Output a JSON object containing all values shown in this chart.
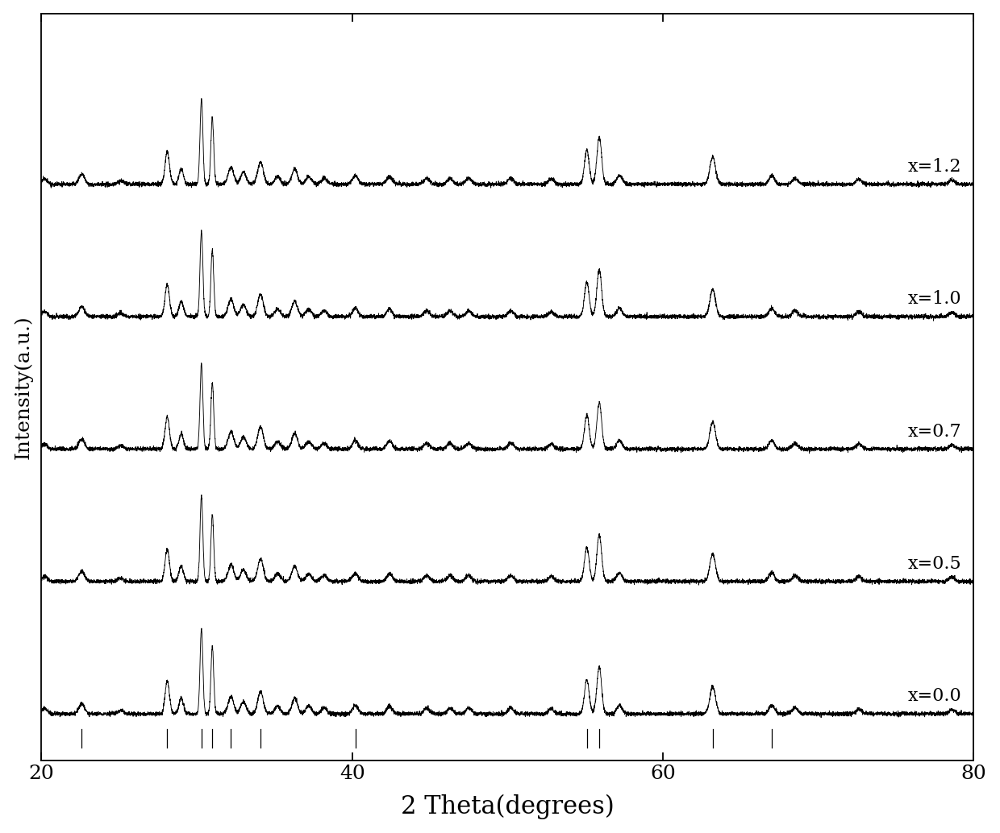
{
  "xlabel": "2 Theta(degrees)",
  "ylabel": "Intensity(a.u.)",
  "xlim": [
    20,
    80
  ],
  "x_ticks": [
    20,
    40,
    60,
    80
  ],
  "labels": [
    "x=0.0",
    "x=0.5",
    "x=0.7",
    "x=1.0",
    "x=1.2"
  ],
  "offsets": [
    0.0,
    1.55,
    3.1,
    4.65,
    6.2
  ],
  "line_color": "#000000",
  "background_color": "#ffffff",
  "noise_amplitude": 0.012,
  "xlabel_fontsize": 22,
  "ylabel_fontsize": 18,
  "tick_fontsize": 18,
  "label_fontsize": 16,
  "peak_positions": [
    20.2,
    22.6,
    25.1,
    28.1,
    29.0,
    30.3,
    31.0,
    32.2,
    33.0,
    34.1,
    35.2,
    36.3,
    37.2,
    38.2,
    40.2,
    42.4,
    44.8,
    46.3,
    47.5,
    50.2,
    52.8,
    55.1,
    55.9,
    57.2,
    63.2,
    67.0,
    68.5,
    72.6,
    78.6
  ],
  "peak_heights": [
    0.06,
    0.12,
    0.04,
    0.38,
    0.18,
    1.0,
    0.78,
    0.2,
    0.14,
    0.26,
    0.09,
    0.18,
    0.09,
    0.07,
    0.1,
    0.09,
    0.07,
    0.07,
    0.07,
    0.07,
    0.06,
    0.4,
    0.55,
    0.1,
    0.32,
    0.1,
    0.07,
    0.06,
    0.05
  ],
  "peak_widths": [
    0.18,
    0.18,
    0.18,
    0.14,
    0.14,
    0.09,
    0.09,
    0.18,
    0.18,
    0.18,
    0.18,
    0.18,
    0.18,
    0.18,
    0.18,
    0.18,
    0.18,
    0.18,
    0.18,
    0.18,
    0.18,
    0.15,
    0.15,
    0.18,
    0.18,
    0.18,
    0.18,
    0.18,
    0.18
  ],
  "ref_peaks": [
    22.6,
    28.1,
    30.3,
    31.0,
    32.2,
    34.1,
    40.2,
    55.1,
    55.9,
    63.2,
    67.0
  ]
}
